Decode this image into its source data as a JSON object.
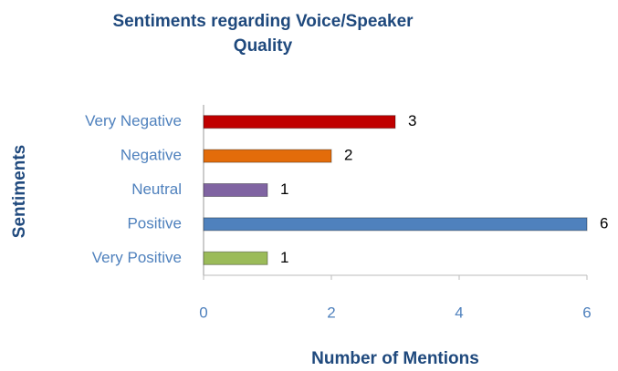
{
  "chart_data": {
    "type": "bar",
    "orientation": "horizontal",
    "title": "Sentiments regarding Voice/Speaker Quality",
    "x_label": "Number of Mentions",
    "y_label": "Sentiments",
    "categories": [
      "Very Negative",
      "Negative",
      "Neutral",
      "Positive",
      "Very Positive"
    ],
    "values": [
      3,
      2,
      1,
      6,
      1
    ],
    "colors": [
      "#c00000",
      "#e36c0a",
      "#8064a2",
      "#4f81bd",
      "#9bbb59"
    ],
    "xlim": [
      0,
      6
    ],
    "xticks": [
      0,
      2,
      4,
      6
    ],
    "grid": false
  }
}
